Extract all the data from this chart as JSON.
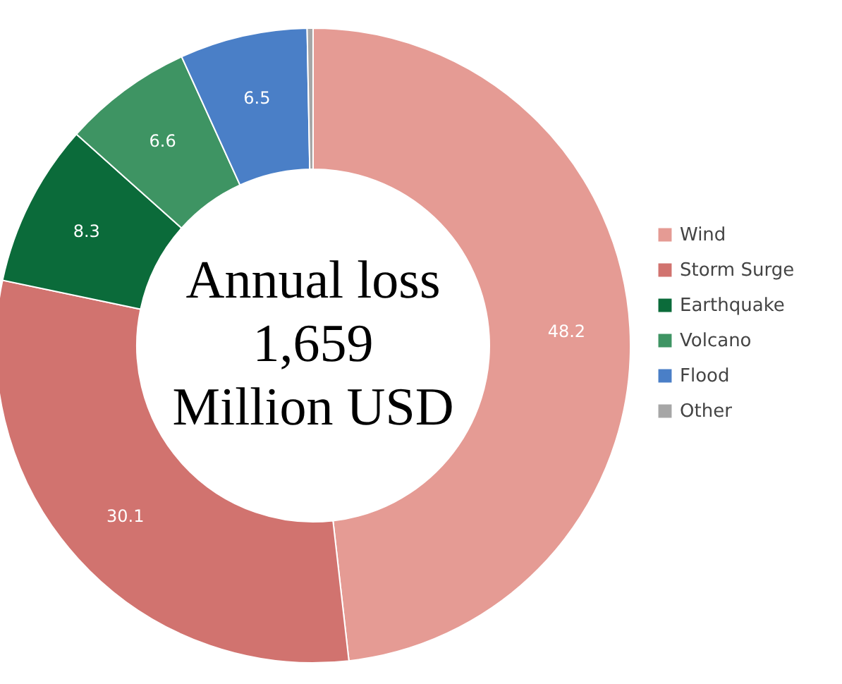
{
  "chart_data": {
    "type": "donut",
    "categories": [
      "Wind",
      "Storm Surge",
      "Earthquake",
      "Volcano",
      "Flood",
      "Other"
    ],
    "values": [
      48.2,
      30.1,
      8.3,
      6.6,
      6.5,
      0.3
    ],
    "colors": [
      "#e59b94",
      "#d1736f",
      "#0b6b3a",
      "#3e9463",
      "#4a7fc7",
      "#a6a6a6"
    ],
    "value_labels": [
      "48.2",
      "30.1",
      "8.3",
      "6.6",
      "6.5",
      null
    ],
    "annotations": [
      "Annual loss",
      "1,659",
      "Million USD"
    ],
    "legend": "right"
  }
}
